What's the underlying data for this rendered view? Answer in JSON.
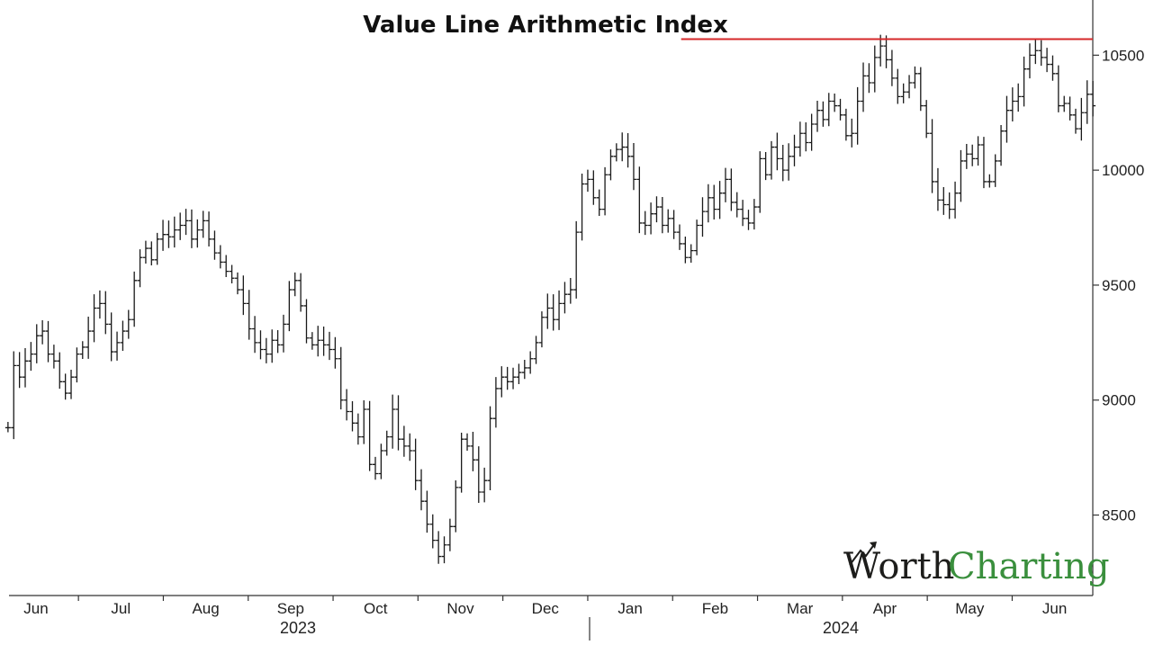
{
  "chart_data": {
    "type": "line",
    "title": "Value Line Arithmetic Index",
    "xlabel": "",
    "ylabel": "",
    "ylim": [
      8150,
      10740
    ],
    "yticks": [
      8500,
      9000,
      9500,
      10000,
      10500
    ],
    "ytick_labels": [
      "8500",
      "9000",
      "9500",
      "10000",
      "10500"
    ],
    "x_months": [
      "Jun",
      "Jul",
      "Aug",
      "Sep",
      "Oct",
      "Nov",
      "Dec",
      "Jan",
      "Feb",
      "Mar",
      "Apr",
      "May",
      "Jun"
    ],
    "x_years": [
      "2023",
      "2024"
    ],
    "resistance_level": 10570,
    "resistance_color": "#d62728",
    "resistance_start_month_index": 7.6,
    "series": [
      {
        "bar_style": "ohlc",
        "points": [
          [
            0.0,
            8880
          ],
          [
            0.15,
            9150
          ],
          [
            0.3,
            9100
          ],
          [
            0.45,
            9170
          ],
          [
            0.6,
            9200
          ],
          [
            0.75,
            9280
          ],
          [
            0.9,
            9300
          ],
          [
            1.05,
            9200
          ],
          [
            1.2,
            9170
          ],
          [
            1.35,
            9080
          ],
          [
            1.5,
            9030
          ],
          [
            1.65,
            9100
          ],
          [
            1.8,
            9200
          ],
          [
            1.95,
            9230
          ],
          [
            2.1,
            9300
          ],
          [
            2.25,
            9400
          ],
          [
            2.4,
            9420
          ],
          [
            2.55,
            9330
          ],
          [
            2.7,
            9210
          ],
          [
            2.85,
            9250
          ],
          [
            3.0,
            9300
          ],
          [
            3.15,
            9350
          ],
          [
            3.3,
            9520
          ],
          [
            3.45,
            9620
          ],
          [
            3.6,
            9660
          ],
          [
            3.75,
            9610
          ],
          [
            3.9,
            9700
          ],
          [
            4.05,
            9720
          ],
          [
            4.2,
            9710
          ],
          [
            4.35,
            9740
          ],
          [
            4.5,
            9760
          ],
          [
            4.65,
            9780
          ],
          [
            4.8,
            9700
          ],
          [
            4.95,
            9740
          ],
          [
            5.1,
            9780
          ],
          [
            5.25,
            9700
          ],
          [
            5.4,
            9640
          ],
          [
            5.55,
            9600
          ],
          [
            5.7,
            9560
          ],
          [
            5.85,
            9530
          ],
          [
            6.0,
            9480
          ],
          [
            6.15,
            9420
          ],
          [
            6.3,
            9310
          ],
          [
            6.45,
            9250
          ],
          [
            6.6,
            9220
          ],
          [
            6.75,
            9200
          ],
          [
            6.9,
            9260
          ],
          [
            7.05,
            9240
          ],
          [
            7.2,
            9330
          ],
          [
            7.35,
            9480
          ],
          [
            7.5,
            9520
          ],
          [
            7.65,
            9410
          ],
          [
            7.8,
            9270
          ],
          [
            7.95,
            9240
          ],
          [
            8.1,
            9260
          ],
          [
            8.25,
            9240
          ],
          [
            8.4,
            9220
          ],
          [
            8.55,
            9180
          ],
          [
            8.7,
            9000
          ],
          [
            8.85,
            8950
          ],
          [
            9.0,
            8900
          ],
          [
            9.15,
            8840
          ],
          [
            9.3,
            8960
          ],
          [
            9.45,
            8720
          ],
          [
            9.6,
            8680
          ],
          [
            9.75,
            8780
          ],
          [
            9.9,
            8840
          ],
          [
            10.05,
            8960
          ],
          [
            10.2,
            8830
          ],
          [
            10.35,
            8800
          ],
          [
            10.5,
            8780
          ],
          [
            10.65,
            8650
          ],
          [
            10.8,
            8560
          ],
          [
            10.95,
            8460
          ],
          [
            11.1,
            8390
          ],
          [
            11.25,
            8320
          ],
          [
            11.4,
            8370
          ],
          [
            11.55,
            8450
          ],
          [
            11.7,
            8620
          ],
          [
            11.85,
            8830
          ],
          [
            12.0,
            8800
          ],
          [
            12.15,
            8740
          ],
          [
            12.3,
            8600
          ],
          [
            12.45,
            8650
          ],
          [
            12.6,
            8920
          ],
          [
            12.75,
            9050
          ],
          [
            12.9,
            9100
          ],
          [
            13.05,
            9080
          ],
          [
            13.2,
            9100
          ],
          [
            13.35,
            9120
          ],
          [
            13.5,
            9140
          ],
          [
            13.65,
            9180
          ],
          [
            13.8,
            9250
          ],
          [
            13.95,
            9360
          ],
          [
            14.1,
            9400
          ],
          [
            14.25,
            9350
          ],
          [
            14.4,
            9420
          ],
          [
            14.55,
            9460
          ],
          [
            14.7,
            9480
          ],
          [
            14.85,
            9730
          ],
          [
            15.0,
            9940
          ],
          [
            15.15,
            9960
          ],
          [
            15.3,
            9880
          ],
          [
            15.45,
            9830
          ],
          [
            15.6,
            9980
          ],
          [
            15.75,
            10060
          ],
          [
            15.9,
            10090
          ],
          [
            16.05,
            10100
          ],
          [
            16.2,
            10060
          ],
          [
            16.35,
            9960
          ],
          [
            16.5,
            9770
          ],
          [
            16.65,
            9760
          ],
          [
            16.8,
            9810
          ],
          [
            16.95,
            9840
          ],
          [
            17.1,
            9760
          ],
          [
            17.25,
            9790
          ],
          [
            17.4,
            9730
          ],
          [
            17.55,
            9680
          ],
          [
            17.7,
            9620
          ],
          [
            17.85,
            9650
          ],
          [
            18.0,
            9760
          ],
          [
            18.15,
            9820
          ],
          [
            18.3,
            9880
          ],
          [
            18.45,
            9830
          ],
          [
            18.6,
            9900
          ],
          [
            18.75,
            9960
          ],
          [
            18.9,
            9860
          ],
          [
            19.05,
            9830
          ],
          [
            19.2,
            9790
          ],
          [
            19.35,
            9770
          ],
          [
            19.5,
            9840
          ],
          [
            19.65,
            10050
          ],
          [
            19.8,
            9980
          ],
          [
            19.95,
            10100
          ],
          [
            20.1,
            10050
          ],
          [
            20.25,
            10000
          ],
          [
            20.4,
            10060
          ],
          [
            20.55,
            10100
          ],
          [
            20.7,
            10160
          ],
          [
            20.85,
            10120
          ],
          [
            21.0,
            10200
          ],
          [
            21.15,
            10260
          ],
          [
            21.3,
            10220
          ],
          [
            21.45,
            10300
          ],
          [
            21.6,
            10280
          ],
          [
            21.75,
            10240
          ],
          [
            21.9,
            10150
          ],
          [
            22.05,
            10160
          ],
          [
            22.2,
            10300
          ],
          [
            22.35,
            10410
          ],
          [
            22.5,
            10380
          ],
          [
            22.65,
            10490
          ],
          [
            22.8,
            10540
          ],
          [
            22.95,
            10480
          ],
          [
            23.1,
            10400
          ],
          [
            23.25,
            10320
          ],
          [
            23.4,
            10340
          ],
          [
            23.55,
            10380
          ],
          [
            23.7,
            10420
          ],
          [
            23.85,
            10280
          ],
          [
            24.0,
            10160
          ],
          [
            24.15,
            9950
          ],
          [
            24.3,
            9870
          ],
          [
            24.45,
            9850
          ],
          [
            24.6,
            9830
          ],
          [
            24.75,
            9900
          ],
          [
            24.9,
            10040
          ],
          [
            25.05,
            10070
          ],
          [
            25.2,
            10050
          ],
          [
            25.35,
            10110
          ],
          [
            25.5,
            9950
          ],
          [
            25.65,
            9950
          ],
          [
            25.8,
            10040
          ],
          [
            25.95,
            10170
          ],
          [
            26.1,
            10260
          ],
          [
            26.25,
            10300
          ],
          [
            26.4,
            10320
          ],
          [
            26.55,
            10440
          ],
          [
            26.7,
            10500
          ],
          [
            26.85,
            10520
          ],
          [
            27.0,
            10490
          ],
          [
            27.15,
            10460
          ],
          [
            27.3,
            10420
          ],
          [
            27.45,
            10280
          ],
          [
            27.6,
            10290
          ],
          [
            27.75,
            10240
          ],
          [
            27.9,
            10180
          ],
          [
            28.05,
            10250
          ],
          [
            28.2,
            10330
          ],
          [
            28.35,
            10280
          ]
        ]
      }
    ],
    "grid": false,
    "legend": "none"
  },
  "brand": {
    "word1": "Worth",
    "word2": "Charting",
    "icon": "upward-arrow-icon",
    "color1": "#1d1d1b",
    "color2": "#3a8f3d"
  }
}
